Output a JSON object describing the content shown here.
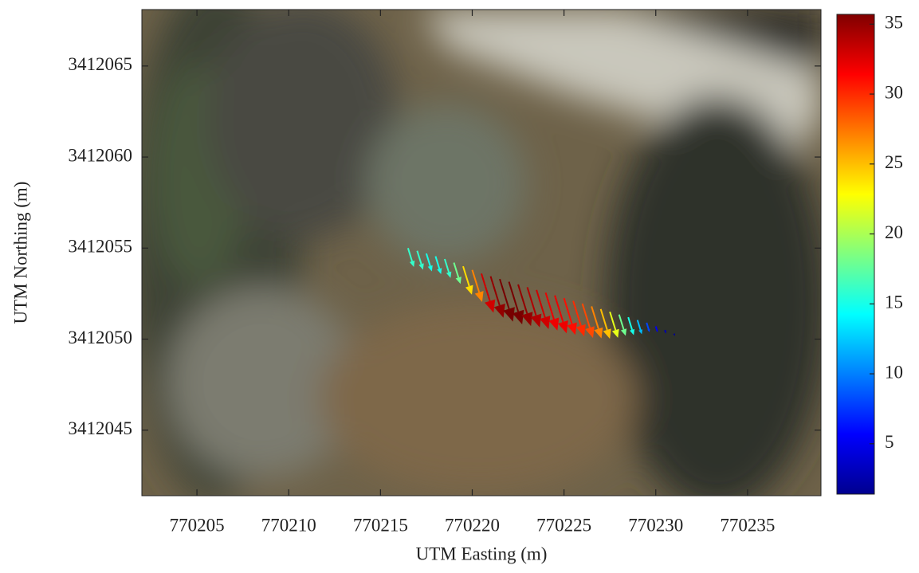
{
  "chart_data": {
    "type": "quiver",
    "xlabel": "UTM Easting (m)",
    "ylabel": "UTM Northing (m)",
    "xlim": [
      770202,
      770239
    ],
    "xticks": [
      770205,
      770210,
      770215,
      770220,
      770225,
      770230,
      770235
    ],
    "ylim": [
      3412041.4,
      3412068.1
    ],
    "yticks": [
      3412045,
      3412050,
      3412055,
      3412060,
      3412065
    ],
    "colormap": "jet",
    "clim": [
      1.4,
      35.7
    ],
    "cticks": [
      5,
      10,
      15,
      20,
      25,
      30,
      35
    ],
    "x": [
      770216.5,
      770217,
      770217.5,
      770218,
      770218.5,
      770219,
      770219.5,
      770220,
      770220.5,
      770221,
      770221.5,
      770222,
      770222.5,
      770223,
      770223.5,
      770224,
      770224.5,
      770225,
      770225.5,
      770226,
      770226.5,
      770227,
      770227.5,
      770228,
      770228.5,
      770229,
      770229.5,
      770230,
      770230.5,
      770231
    ],
    "y": [
      3412055.0,
      3412054.85,
      3412054.7,
      3412054.55,
      3412054.4,
      3412054.2,
      3412054.0,
      3412053.8,
      3412053.6,
      3412053.45,
      3412053.3,
      3412053.15,
      3412053.0,
      3412052.85,
      3412052.7,
      3412052.55,
      3412052.4,
      3412052.25,
      3412052.1,
      3412051.95,
      3412051.8,
      3412051.65,
      3412051.5,
      3412051.35,
      3412051.2,
      3412051.05,
      3412050.9,
      3412050.7,
      3412050.5,
      3412050.3
    ],
    "u": [
      0.32,
      0.32,
      0.3,
      0.3,
      0.32,
      0.36,
      0.48,
      0.54,
      0.66,
      0.7,
      0.72,
      0.72,
      0.7,
      0.68,
      0.66,
      0.64,
      0.64,
      0.62,
      0.6,
      0.58,
      0.54,
      0.5,
      0.44,
      0.36,
      0.3,
      0.24,
      0.16,
      0.1,
      0.06,
      0.04
    ],
    "v": [
      -1.04,
      -1.04,
      -0.98,
      -0.98,
      -1.04,
      -1.17,
      -1.56,
      -1.76,
      -2.15,
      -2.28,
      -2.34,
      -2.34,
      -2.28,
      -2.21,
      -2.15,
      -2.08,
      -2.08,
      -2.02,
      -1.95,
      -1.89,
      -1.76,
      -1.63,
      -1.43,
      -1.17,
      -0.98,
      -0.78,
      -0.52,
      -0.33,
      -0.2,
      -0.13
    ],
    "magnitude": [
      16,
      16,
      15,
      15,
      16,
      18,
      24,
      27,
      33,
      35,
      36,
      36,
      35,
      34,
      33,
      32,
      32,
      31,
      30,
      29,
      27,
      25,
      22,
      18,
      15,
      12,
      8,
      5,
      3,
      2
    ]
  }
}
